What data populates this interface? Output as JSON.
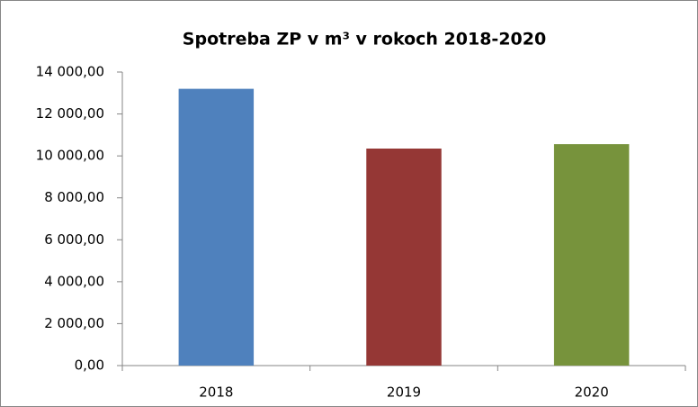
{
  "chart_data": {
    "type": "bar",
    "title": "Spotreba ZP v m³ v rokoch 2018-2020",
    "categories": [
      "2018",
      "2019",
      "2020"
    ],
    "values": [
      13200,
      10350,
      10560
    ],
    "colors": [
      "#4f81bd",
      "#953735",
      "#77933c"
    ],
    "ylim": [
      0,
      14000
    ],
    "yticks": [
      {
        "value": 0,
        "label": "0,00"
      },
      {
        "value": 2000,
        "label": "2 000,00"
      },
      {
        "value": 4000,
        "label": "4 000,00"
      },
      {
        "value": 6000,
        "label": "6 000,00"
      },
      {
        "value": 8000,
        "label": "8 000,00"
      },
      {
        "value": 10000,
        "label": "10 000,00"
      },
      {
        "value": 12000,
        "label": "12 000,00"
      },
      {
        "value": 14000,
        "label": "14 000,00"
      }
    ],
    "grid": false
  }
}
